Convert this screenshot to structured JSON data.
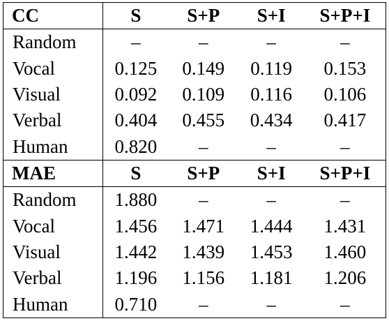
{
  "sections": [
    {
      "header": [
        "CC",
        "S",
        "S+P",
        "S+I",
        "S+P+I"
      ],
      "rows": [
        {
          "label": "Random",
          "values": [
            "–",
            "–",
            "–",
            "–"
          ],
          "bold": [
            false,
            false,
            false,
            false
          ]
        },
        {
          "label": "Vocal",
          "values": [
            "0.125",
            "0.149",
            "0.119",
            "0.153"
          ],
          "bold": [
            false,
            false,
            false,
            true
          ]
        },
        {
          "label": "Visual",
          "values": [
            "0.092",
            "0.109",
            "0.116",
            "0.106"
          ],
          "bold": [
            false,
            false,
            true,
            false
          ]
        },
        {
          "label": "Verbal",
          "values": [
            "0.404",
            "0.455",
            "0.434",
            "0.417"
          ],
          "bold": [
            false,
            true,
            false,
            false
          ]
        },
        {
          "label": "Human",
          "values": [
            "0.820",
            "–",
            "–",
            "–"
          ],
          "bold": [
            false,
            false,
            false,
            false
          ]
        }
      ]
    },
    {
      "header": [
        "MAE",
        "S",
        "S+P",
        "S+I",
        "S+P+I"
      ],
      "rows": [
        {
          "label": "Random",
          "values": [
            "1.880",
            "–",
            "–",
            "–"
          ],
          "bold": [
            false,
            false,
            false,
            false
          ]
        },
        {
          "label": "Vocal",
          "values": [
            "1.456",
            "1.471",
            "1.444",
            "1.431"
          ],
          "bold": [
            false,
            false,
            false,
            true
          ]
        },
        {
          "label": "Visual",
          "values": [
            "1.442",
            "1.439",
            "1.453",
            "1.460"
          ],
          "bold": [
            false,
            true,
            false,
            false
          ]
        },
        {
          "label": "Verbal",
          "values": [
            "1.196",
            "1.156",
            "1.181",
            "1.206"
          ],
          "bold": [
            false,
            true,
            false,
            false
          ]
        },
        {
          "label": "Human",
          "values": [
            "0.710",
            "–",
            "–",
            "–"
          ],
          "bold": [
            false,
            false,
            false,
            false
          ]
        }
      ]
    }
  ]
}
